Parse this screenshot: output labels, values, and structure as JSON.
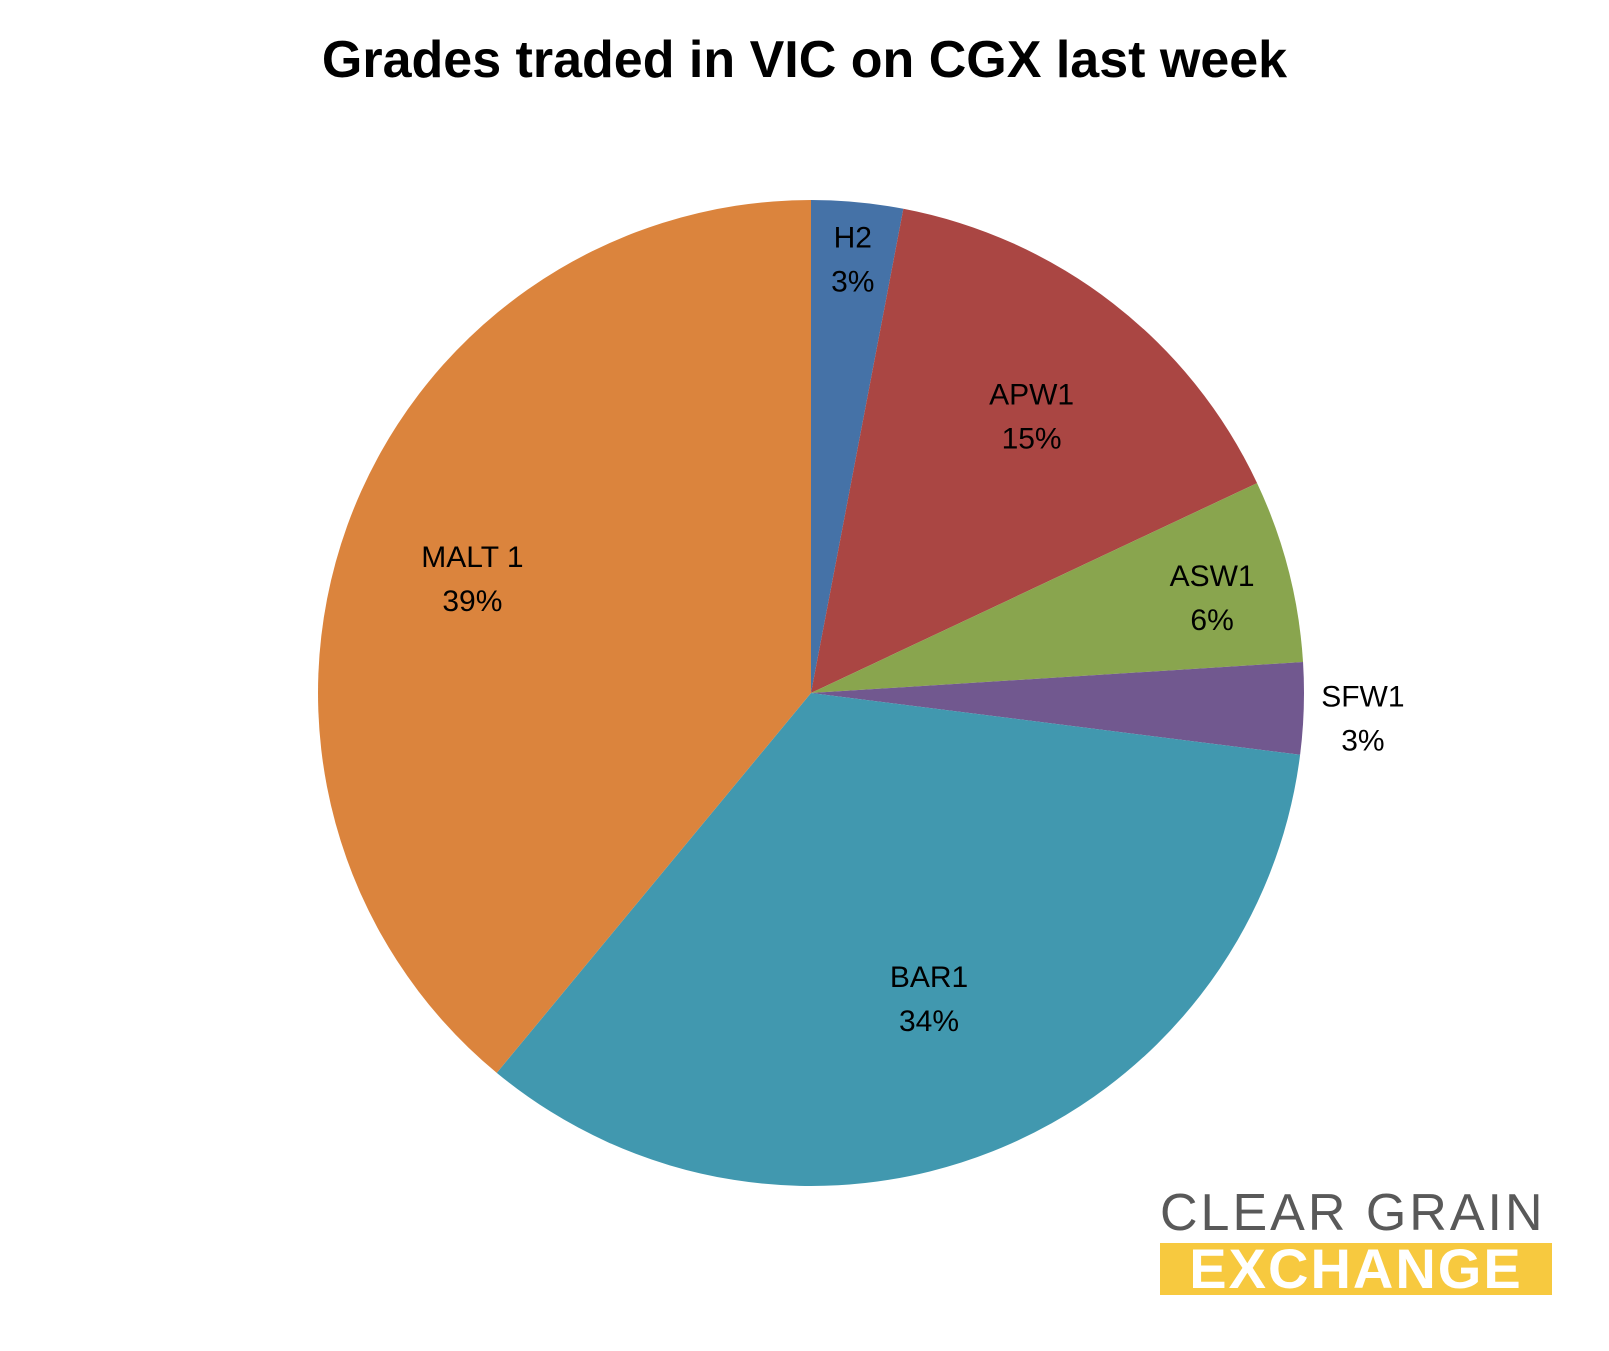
{
  "chart_data": {
    "type": "pie",
    "title": "Grades traded in VIC on CGX last week",
    "start_angle_deg": 0,
    "direction": "clockwise",
    "slices": [
      {
        "label": "H2",
        "value": 3,
        "value_label": "3%",
        "color": "#4572a7"
      },
      {
        "label": "APW1",
        "value": 15,
        "value_label": "15%",
        "color": "#aa4643"
      },
      {
        "label": "ASW1",
        "value": 6,
        "value_label": "6%",
        "color": "#89a54e"
      },
      {
        "label": "SFW1",
        "value": 3,
        "value_label": "3%",
        "color": "#71588f"
      },
      {
        "label": "BAR1",
        "value": 34,
        "value_label": "34%",
        "color": "#4198af"
      },
      {
        "label": "MALT 1",
        "value": 39,
        "value_label": "39%",
        "color": "#db843d"
      }
    ],
    "legend": "none",
    "data_labels": "category and percentage"
  },
  "logo": {
    "line1": "CLEAR GRAIN",
    "line2": "EXCHANGE",
    "line1_color": "#595959",
    "line2_bg_color": "#f7c93f"
  }
}
